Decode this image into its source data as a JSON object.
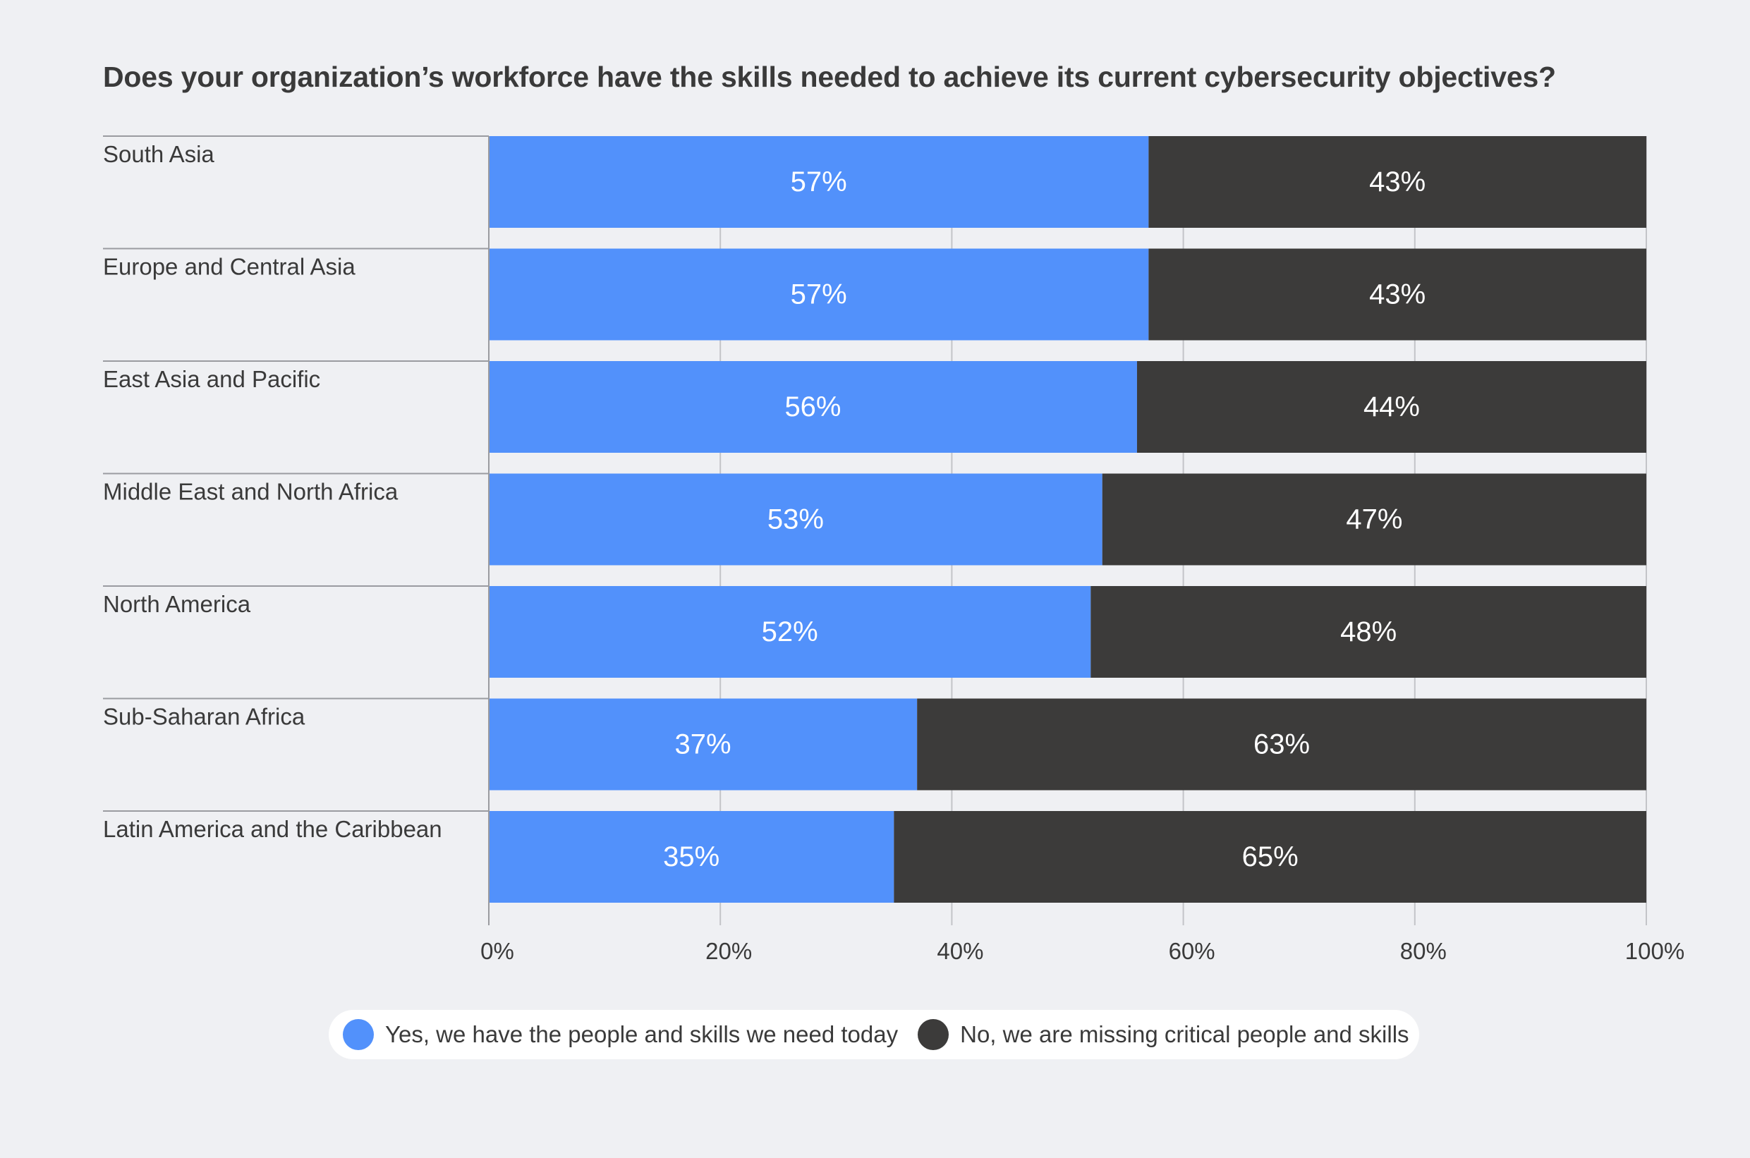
{
  "chart_data": {
    "type": "bar",
    "orientation": "horizontal",
    "stacked": true,
    "title": "Does your organization’s workforce have the skills needed to achieve its current cybersecurity objectives?",
    "categories": [
      "South Asia",
      "Europe and Central Asia",
      "East Asia and Pacific",
      "Middle East and North Africa",
      "North America",
      "Sub-Saharan Africa",
      "Latin America and the Caribbean"
    ],
    "series": [
      {
        "name": "Yes, we have the people and skills we need today",
        "color": "#5291fb",
        "values": [
          57,
          57,
          56,
          53,
          52,
          37,
          35
        ],
        "labels": [
          "57%",
          "57%",
          "56%",
          "53%",
          "52%",
          "37%",
          "35%"
        ]
      },
      {
        "name": "No, we are missing critical people and skills",
        "color": "#3c3b3a",
        "values": [
          43,
          43,
          44,
          47,
          48,
          63,
          65
        ],
        "labels": [
          "43%",
          "43%",
          "44%",
          "47%",
          "48%",
          "63%",
          "65%"
        ]
      }
    ],
    "xlim": [
      0,
      100
    ],
    "xticks": [
      0,
      20,
      40,
      60,
      80,
      100
    ],
    "xtick_labels": [
      "0%",
      "20%",
      "40%",
      "60%",
      "80%",
      "100%"
    ],
    "grid": true,
    "legend_position": "bottom"
  }
}
